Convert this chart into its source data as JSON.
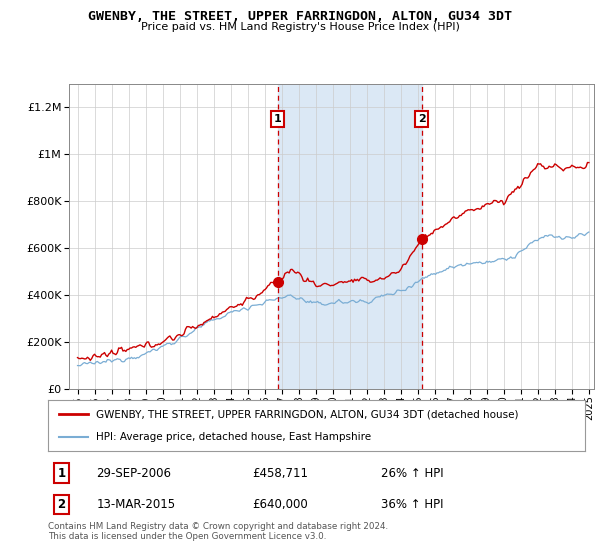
{
  "title": "GWENBY, THE STREET, UPPER FARRINGDON, ALTON, GU34 3DT",
  "subtitle": "Price paid vs. HM Land Registry's House Price Index (HPI)",
  "legend_line1": "GWENBY, THE STREET, UPPER FARRINGDON, ALTON, GU34 3DT (detached house)",
  "legend_line2": "HPI: Average price, detached house, East Hampshire",
  "transaction1_date": "29-SEP-2006",
  "transaction1_price": "£458,711",
  "transaction1_hpi": "26% ↑ HPI",
  "transaction2_date": "13-MAR-2015",
  "transaction2_price": "£640,000",
  "transaction2_hpi": "36% ↑ HPI",
  "footnote": "Contains HM Land Registry data © Crown copyright and database right 2024.\nThis data is licensed under the Open Government Licence v3.0.",
  "red_color": "#cc0000",
  "blue_color": "#7aadd4",
  "shading_color": "#dbe8f5",
  "vline1_x": 2006.75,
  "vline2_x": 2015.2,
  "marker1_y": 458711,
  "marker2_y": 640000,
  "ylim_max": 1300000,
  "yticks": [
    0,
    200000,
    400000,
    600000,
    800000,
    1000000,
    1200000
  ],
  "xlim_start": 1994.5,
  "xlim_end": 2025.3,
  "bg_color": "#ffffff"
}
